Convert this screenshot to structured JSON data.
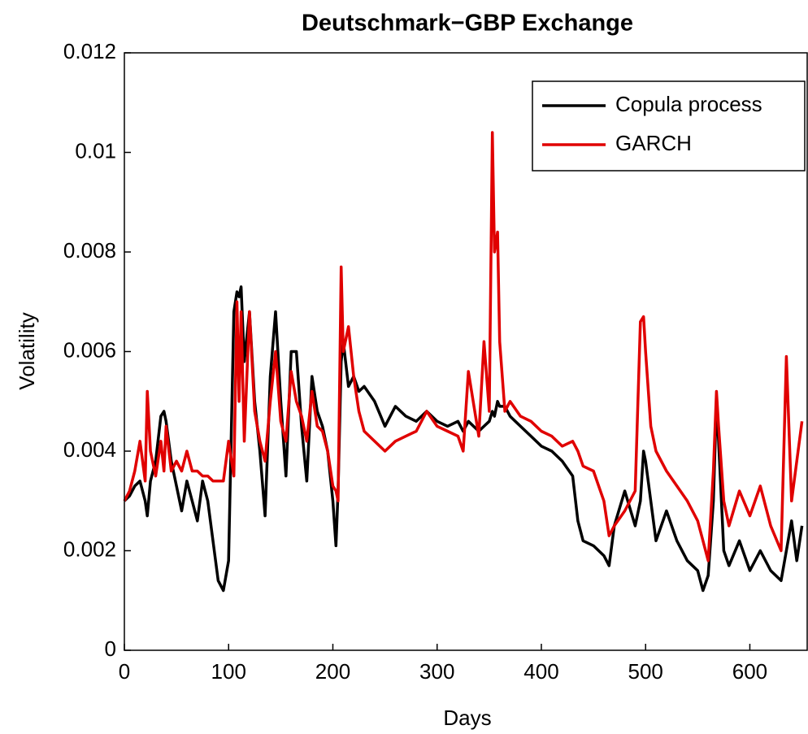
{
  "chart_data": {
    "type": "line",
    "title": "Deutschmark−GBP Exchange",
    "xlabel": "Days",
    "ylabel": "Volatility",
    "x": [
      0,
      5,
      10,
      15,
      20,
      22,
      25,
      30,
      35,
      38,
      40,
      45,
      50,
      55,
      60,
      65,
      70,
      75,
      80,
      85,
      90,
      95,
      100,
      105,
      108,
      110,
      112,
      115,
      120,
      125,
      130,
      135,
      140,
      145,
      150,
      155,
      160,
      165,
      170,
      175,
      180,
      185,
      190,
      195,
      200,
      203,
      205,
      208,
      210,
      215,
      220,
      225,
      230,
      240,
      250,
      260,
      270,
      280,
      290,
      300,
      310,
      320,
      325,
      330,
      340,
      345,
      350,
      353,
      355,
      358,
      360,
      365,
      370,
      380,
      390,
      400,
      410,
      420,
      430,
      435,
      440,
      450,
      460,
      465,
      470,
      480,
      490,
      495,
      498,
      500,
      505,
      510,
      520,
      530,
      540,
      550,
      555,
      560,
      565,
      568,
      570,
      575,
      580,
      590,
      600,
      610,
      620,
      630,
      635,
      640,
      645,
      650
    ],
    "series": [
      {
        "name": "Copula process",
        "color": "#000000",
        "values": [
          0.003,
          0.0031,
          0.0033,
          0.0034,
          0.003,
          0.0027,
          0.0034,
          0.0038,
          0.0047,
          0.0048,
          0.0046,
          0.0038,
          0.0033,
          0.0028,
          0.0034,
          0.003,
          0.0026,
          0.0034,
          0.003,
          0.0022,
          0.0014,
          0.0012,
          0.0018,
          0.0068,
          0.0072,
          0.0071,
          0.0073,
          0.0058,
          0.0068,
          0.005,
          0.004,
          0.0027,
          0.0055,
          0.0068,
          0.005,
          0.0035,
          0.006,
          0.006,
          0.0045,
          0.0034,
          0.0055,
          0.0048,
          0.0045,
          0.004,
          0.003,
          0.0021,
          0.0032,
          0.0058,
          0.0062,
          0.0053,
          0.0055,
          0.0052,
          0.0053,
          0.005,
          0.0045,
          0.0049,
          0.0047,
          0.0046,
          0.0048,
          0.0046,
          0.0045,
          0.0046,
          0.0044,
          0.0046,
          0.0044,
          0.0045,
          0.0046,
          0.0048,
          0.0047,
          0.005,
          0.0049,
          0.0049,
          0.0047,
          0.0045,
          0.0043,
          0.0041,
          0.004,
          0.0038,
          0.0035,
          0.0026,
          0.0022,
          0.0021,
          0.0019,
          0.0017,
          0.0025,
          0.0032,
          0.0025,
          0.003,
          0.004,
          0.0038,
          0.003,
          0.0022,
          0.0028,
          0.0022,
          0.0018,
          0.0016,
          0.0012,
          0.0015,
          0.003,
          0.005,
          0.0042,
          0.002,
          0.0017,
          0.0022,
          0.0016,
          0.002,
          0.0016,
          0.0014,
          0.002,
          0.0026,
          0.0018,
          0.0025
        ]
      },
      {
        "name": "GARCH",
        "color": "#e00000",
        "values": [
          0.003,
          0.0032,
          0.0036,
          0.0042,
          0.0034,
          0.0052,
          0.004,
          0.0035,
          0.0042,
          0.0036,
          0.0045,
          0.0036,
          0.0038,
          0.0036,
          0.004,
          0.0036,
          0.0036,
          0.0035,
          0.0035,
          0.0034,
          0.0034,
          0.0034,
          0.0042,
          0.0035,
          0.007,
          0.005,
          0.0068,
          0.0042,
          0.0068,
          0.0048,
          0.0042,
          0.0038,
          0.005,
          0.006,
          0.0046,
          0.0042,
          0.0056,
          0.005,
          0.0047,
          0.0042,
          0.0052,
          0.0045,
          0.0044,
          0.004,
          0.0033,
          0.0032,
          0.003,
          0.0077,
          0.006,
          0.0065,
          0.0055,
          0.0048,
          0.0044,
          0.0042,
          0.004,
          0.0042,
          0.0043,
          0.0044,
          0.0048,
          0.0045,
          0.0044,
          0.0043,
          0.004,
          0.0056,
          0.0043,
          0.0062,
          0.0048,
          0.0104,
          0.008,
          0.0084,
          0.0062,
          0.0048,
          0.005,
          0.0047,
          0.0046,
          0.0044,
          0.0043,
          0.0041,
          0.0042,
          0.004,
          0.0037,
          0.0036,
          0.003,
          0.0023,
          0.0025,
          0.0028,
          0.0032,
          0.0066,
          0.0067,
          0.006,
          0.0045,
          0.004,
          0.0036,
          0.0033,
          0.003,
          0.0026,
          0.0022,
          0.0018,
          0.0036,
          0.0052,
          0.0045,
          0.003,
          0.0025,
          0.0032,
          0.0027,
          0.0033,
          0.0025,
          0.002,
          0.0059,
          0.003,
          0.0038,
          0.0046
        ]
      }
    ],
    "xlim": [
      0,
      655
    ],
    "xticks": [
      0,
      100,
      200,
      300,
      400,
      500,
      600
    ],
    "ylim": [
      0,
      0.012
    ],
    "yticks": [
      0,
      0.002,
      0.004,
      0.006,
      0.008,
      0.01,
      0.012
    ],
    "legend": "upper right",
    "grid": false
  }
}
